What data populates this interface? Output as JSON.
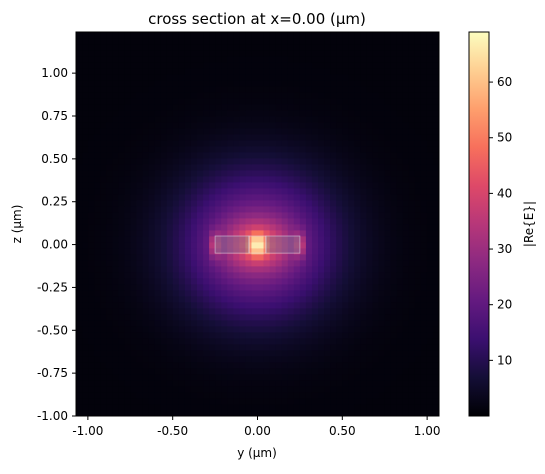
{
  "chart_data": {
    "type": "heatmap",
    "title": "cross section at x=0.00 (µm)",
    "xlabel": "y (µm)",
    "ylabel": "z (µm)",
    "xlim": [
      -1.07,
      1.07
    ],
    "ylim": [
      -1.0,
      1.24
    ],
    "xticks": [
      -1.0,
      -0.5,
      0.0,
      0.5,
      1.0
    ],
    "xtick_labels": [
      "-1.00",
      "-0.50",
      "0.00",
      "0.50",
      "1.00"
    ],
    "yticks": [
      1.0,
      0.75,
      0.5,
      0.25,
      0.0,
      -0.25,
      -0.5,
      -0.75,
      -1.0
    ],
    "ytick_labels": [
      "1.00",
      "0.75",
      "0.50",
      "0.25",
      "0.00",
      "-0.25",
      "-0.50",
      "-0.75",
      "-1.00"
    ],
    "colormap": "magma",
    "colorbar": {
      "label": "|Re{E}|",
      "min": 0,
      "max": 69,
      "ticks": [
        10,
        20,
        30,
        40,
        50,
        60
      ],
      "tick_labels": [
        "10",
        "20",
        "30",
        "40",
        "50",
        "60"
      ]
    },
    "field": {
      "peak_value": 68,
      "peak_y": 0.0,
      "peak_z": 0.0,
      "background_min": 1
    },
    "structures": [
      {
        "name": "left rail",
        "y0": -0.25,
        "y1": -0.05,
        "z0": -0.05,
        "z1": 0.05
      },
      {
        "name": "center gap",
        "y0": -0.05,
        "y1": 0.05,
        "z0": -0.05,
        "z1": 0.05
      },
      {
        "name": "right rail",
        "y0": 0.05,
        "y1": 0.25,
        "z0": -0.05,
        "z1": 0.05
      }
    ]
  }
}
